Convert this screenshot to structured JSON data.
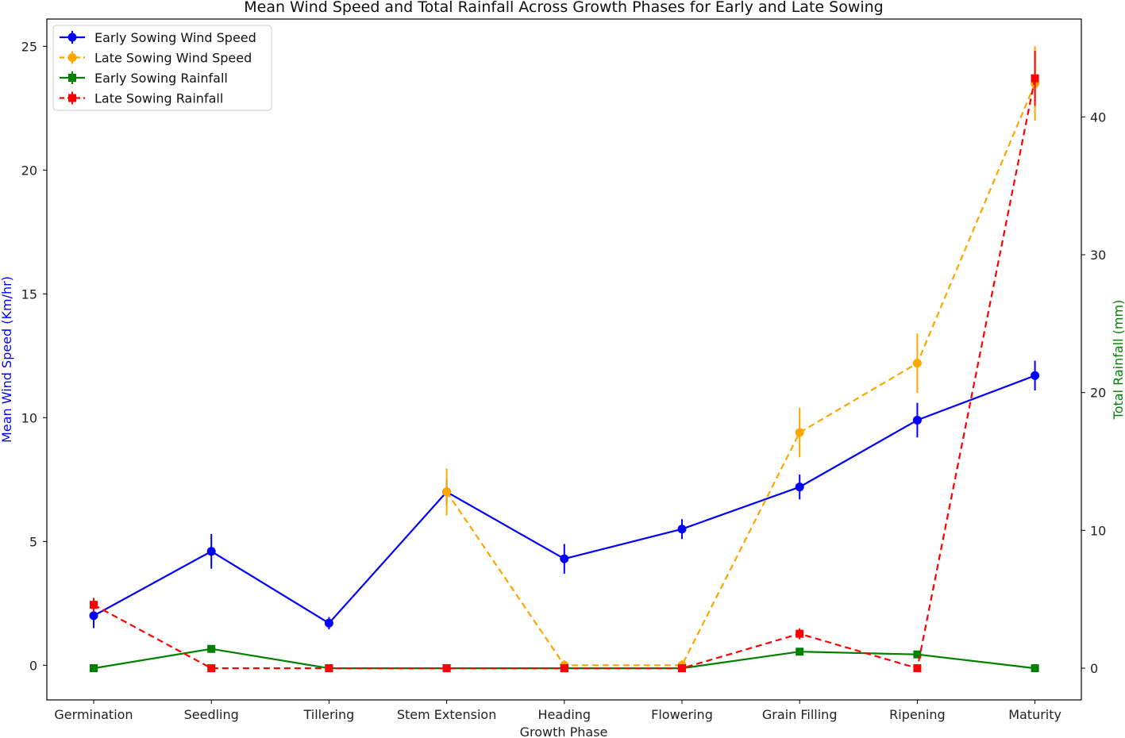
{
  "chart_data": {
    "type": "line",
    "title": "Mean Wind Speed and Total Rainfall Across Growth Phases for Early and Late Sowing",
    "xlabel": "Growth Phase",
    "ylabel_left": "Mean Wind Speed (Km/hr)",
    "ylabel_right": "Total Rainfall (mm)",
    "ylim_left": [
      -1.4,
      26.1
    ],
    "ylim_right": [
      -2.3,
      47.1
    ],
    "yticks_left": [
      0,
      5,
      10,
      15,
      20,
      25
    ],
    "yticks_right": [
      0,
      10,
      20,
      30,
      40
    ],
    "categories": [
      "Germination",
      "Seedling",
      "Tillering",
      "Stem Extension",
      "Heading",
      "Flowering",
      "Grain Filling",
      "Ripening",
      "Maturity"
    ],
    "grid": false,
    "legend_position": "top-left",
    "series": [
      {
        "name": "Early Sowing Wind Speed",
        "axis": "left",
        "color": "#0000ff",
        "linestyle": "solid",
        "marker": "circle",
        "values": [
          2.0,
          4.6,
          1.7,
          7.0,
          4.3,
          5.5,
          7.2,
          9.9,
          11.7
        ],
        "errors": [
          0.5,
          0.7,
          0.25,
          0.5,
          0.6,
          0.4,
          0.5,
          0.7,
          0.6
        ]
      },
      {
        "name": "Late Sowing Wind Speed",
        "axis": "left",
        "color": "#ffa500",
        "linestyle": "dashed",
        "marker": "circle",
        "values": [
          null,
          null,
          null,
          7.0,
          0.0,
          0.0,
          9.4,
          12.2,
          23.5
        ],
        "errors": [
          0,
          0,
          0,
          0.95,
          0.2,
          0.2,
          1.0,
          1.2,
          1.5
        ]
      },
      {
        "name": "Early Sowing Rainfall",
        "axis": "right",
        "color": "#008000",
        "linestyle": "solid",
        "marker": "square",
        "values": [
          0.0,
          1.4,
          0.0,
          0.0,
          0.0,
          0.0,
          1.2,
          1.0,
          0.0
        ],
        "errors": [
          0.1,
          0.15,
          0.1,
          0.1,
          0.1,
          0.1,
          0.15,
          0.1,
          0.1
        ]
      },
      {
        "name": "Late Sowing Rainfall",
        "axis": "right",
        "color": "#ff0000",
        "linestyle": "dashed",
        "marker": "square",
        "values": [
          4.6,
          0.0,
          0.0,
          0.0,
          0.0,
          0.0,
          2.5,
          0.0,
          42.8
        ],
        "errors": [
          0.5,
          0.1,
          0.1,
          0.1,
          0.1,
          0.1,
          0.4,
          0.1,
          2.0
        ]
      }
    ]
  }
}
